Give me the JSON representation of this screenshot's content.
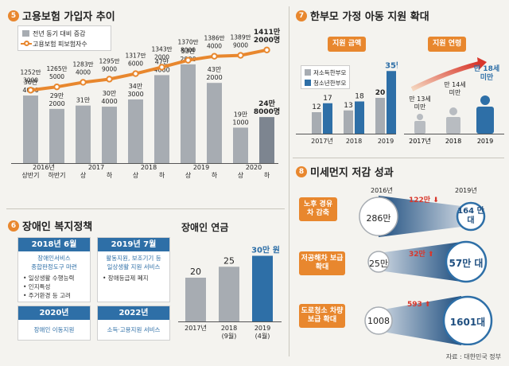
{
  "section5": {
    "num": "5",
    "title": "고용보험 가입자 추이",
    "legend_bar": "전년 동기 대비 증감",
    "legend_line": "고용보험 피보험자수"
  },
  "section6": {
    "num": "6",
    "title": "장애인 복지정책",
    "cards": [
      {
        "head": "2018년 6월",
        "lines": [
          "장애인서비스",
          "종합판정도구 마련",
          "• 일상생활 수행능력",
          "• 인지특성",
          "• 주거환경 등 고려"
        ]
      },
      {
        "head": "2019년 7월",
        "lines": [
          "활동지원, 보조기기 등",
          "일상생활 지원 서비스",
          "• 장애등급제 폐지"
        ]
      },
      {
        "head": "2020년",
        "lines": [
          "장애인 이동지원"
        ]
      },
      {
        "head": "2022년",
        "lines": [
          "소득·고용지원 서비스"
        ]
      }
    ],
    "pension_title": "장애인 연금"
  },
  "section7": {
    "num": "7",
    "title": "한부모 가정 아동 지원 확대",
    "tag_amount": "지원 금액",
    "tag_age": "지원 연령",
    "legend_a": "저소득한부모",
    "legend_b": "청소년한부모",
    "ages": [
      "만 13세 미만",
      "만 14세 미만",
      "만 18세 미만"
    ]
  },
  "section8": {
    "num": "8",
    "title": "미세먼지 저감 성과",
    "col_from": "2016년",
    "col_to": "2019년",
    "rows": [
      {
        "label": "노후 경유차 감축",
        "from": "286만",
        "change": "122만",
        "dir": "down",
        "to": "164 만 대"
      },
      {
        "label": "저공해차 보급 확대",
        "from": "25만",
        "change": "32만",
        "dir": "up",
        "to": "57만 대"
      },
      {
        "label": "도로청소 차량 보급 확대",
        "from": "1008",
        "change": "593",
        "dir": "up",
        "to": "1601대"
      }
    ]
  },
  "source": "자료 : 대한민국 정부",
  "colors": {
    "orange": "#e8872e",
    "blue": "#2e6fa7",
    "gray": "#a7acb2",
    "navy": "#1f4f80"
  },
  "chart_data": [
    {
      "type": "bar",
      "id": "employment-insurance",
      "categories": [
        "2016년 상반기",
        "하반기",
        "2017 상",
        "하",
        "2018 상",
        "하",
        "2019 상",
        "하",
        "2020 상",
        "하"
      ],
      "category_labels": [
        "상반기",
        "하반기",
        "상",
        "하",
        "상",
        "하",
        "상",
        "하",
        "상",
        "하"
      ],
      "year_labels": [
        "2016년",
        "2017",
        "2018",
        "2019",
        "2020"
      ],
      "series": [
        {
          "name": "전년 동기 대비 증감",
          "type": "bar",
          "values": [
            364000,
            292000,
            310000,
            304000,
            343000,
            474000,
            532000,
            432000,
            191000,
            248000
          ],
          "labels": [
            "36만 4000",
            "29만 2000",
            "31만",
            "30만 4000",
            "34만 3000",
            "47만 4000",
            "53만 2000",
            "43만 2000",
            "19만 1000",
            "24만 8000명"
          ]
        },
        {
          "name": "고용보험 피보험자수",
          "type": "line",
          "values": [
            12523000,
            12655000,
            12834000,
            12959000,
            13176000,
            13432000,
            13708000,
            13864000,
            13899000,
            14112000
          ],
          "labels": [
            "1252만 3000",
            "1265만 5000",
            "1283만 4000",
            "1295만 9000",
            "1317만 6000",
            "1343만 2000",
            "1370만 8000",
            "1386만 4000",
            "1389만 9000",
            "1411만 2000명"
          ]
        }
      ]
    },
    {
      "type": "bar",
      "id": "disability-pension",
      "categories": [
        "2017년",
        "2018 (9월)",
        "2019 (4월)"
      ],
      "values": [
        20,
        25,
        30
      ],
      "labels": [
        "20",
        "25",
        "30만 원"
      ],
      "unit": "만 원"
    },
    {
      "type": "bar",
      "id": "single-parent-amount",
      "categories": [
        "2017년",
        "2018",
        "2019"
      ],
      "series": [
        {
          "name": "저소득한부모",
          "values": [
            12,
            13,
            20
          ],
          "labels": [
            "12",
            "13",
            "20"
          ]
        },
        {
          "name": "청소년한부모",
          "values": [
            17,
            18,
            35
          ],
          "labels": [
            "17",
            "18",
            "35만 원"
          ]
        }
      ]
    }
  ]
}
